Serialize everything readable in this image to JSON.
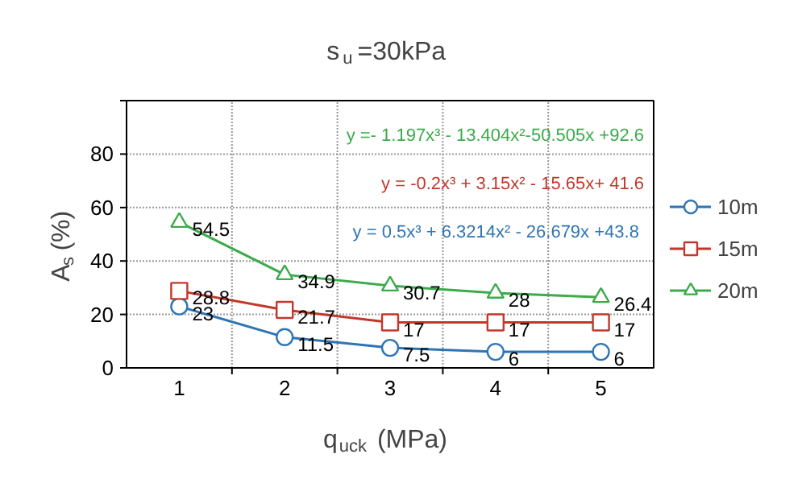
{
  "chart_data": {
    "type": "line",
    "title": "s$_{u}$=30kPa",
    "xlabel": "q$_{uck}$(MPa)",
    "ylabel": "A$_{s}$ (%)",
    "categories": [
      "1",
      "2",
      "3",
      "4",
      "5"
    ],
    "series": [
      {
        "name": "10m",
        "color": "#2e75b6",
        "values": [
          23,
          11.5,
          7.5,
          6,
          6
        ],
        "marker": "circle"
      },
      {
        "name": "15m",
        "color": "#c0392b",
        "values": [
          28.8,
          21.7,
          17,
          17,
          17
        ],
        "marker": "square"
      },
      {
        "name": "20m",
        "color": "#3cab4b",
        "values": [
          54.5,
          34.9,
          30.7,
          28,
          26.4
        ],
        "marker": "triangle"
      }
    ],
    "annotations": [
      "y =- 1.197x³ - 13.404x²-50.505x +92.6",
      "y = -0.2x³ + 3.15x² - 15.65x+ 41.6",
      "y = 0.5x³  + 6.3214x² - 26.679x +43.8"
    ],
    "ylim": [
      0,
      100
    ],
    "yticks": [
      0,
      20,
      40,
      60,
      80,
      {
        "value": 100,
        "label": null
      }
    ],
    "grid": true,
    "legend": "right",
    "data_labels": true,
    "line_style": "solid"
  }
}
